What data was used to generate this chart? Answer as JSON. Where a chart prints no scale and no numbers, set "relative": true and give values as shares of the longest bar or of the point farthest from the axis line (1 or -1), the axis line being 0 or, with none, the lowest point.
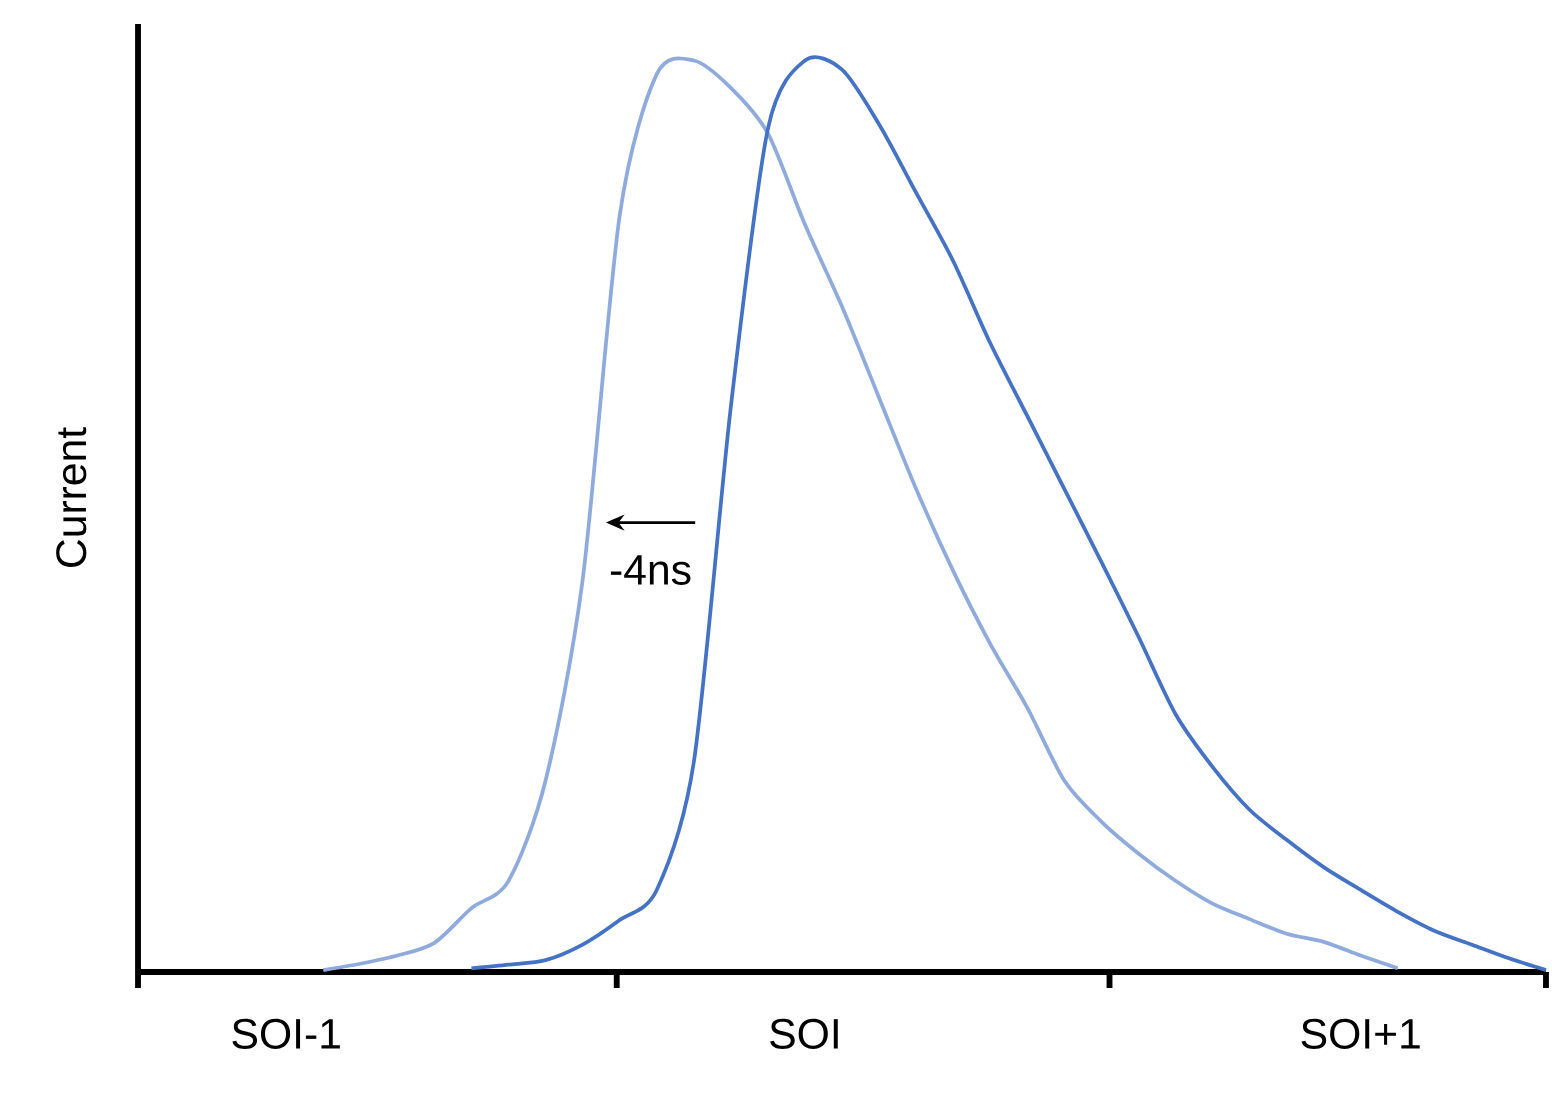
{
  "chart_data": {
    "type": "line",
    "relative": true,
    "ylabel": "Current",
    "categories": [
      null,
      null,
      null,
      null,
      "SOI-1",
      null,
      null,
      null,
      null,
      null,
      null,
      null,
      null,
      null,
      null,
      null,
      null,
      null,
      "SOI",
      null,
      null,
      null,
      null,
      null,
      null,
      null,
      null,
      null,
      null,
      null,
      null,
      null,
      null,
      "SOI+1",
      null,
      null,
      null,
      null,
      null
    ],
    "series": [
      {
        "color": "#8faadc",
        "values": [
          null,
          null,
          null,
          null,
          null,
          0.002,
          0.009,
          0.018,
          0.032,
          0.07,
          0.1,
          0.21,
          0.43,
          0.83,
          0.985,
          1,
          0.97,
          0.92,
          0.82,
          0.73,
          0.63,
          0.53,
          0.44,
          0.36,
          0.29,
          0.21,
          0.165,
          0.13,
          0.1,
          0.075,
          0.058,
          0.042,
          0.033,
          0.018,
          0.004,
          null,
          null,
          null,
          null
        ]
      },
      {
        "color": "#4472c4",
        "values": [
          null,
          null,
          null,
          null,
          null,
          null,
          null,
          null,
          null,
          0.004,
          0.008,
          0.013,
          0.03,
          0.057,
          0.09,
          0.23,
          0.62,
          0.925,
          1,
          0.99,
          0.93,
          0.855,
          0.78,
          0.69,
          0.61,
          0.53,
          0.45,
          0.368,
          0.283,
          0.225,
          0.178,
          0.145,
          0.115,
          0.09,
          0.066,
          0.045,
          0.03,
          0.015,
          0.002
        ]
      }
    ],
    "annotations": [
      "-4ns"
    ],
    "grid": false,
    "marker": "none",
    "line_style": "solid"
  }
}
